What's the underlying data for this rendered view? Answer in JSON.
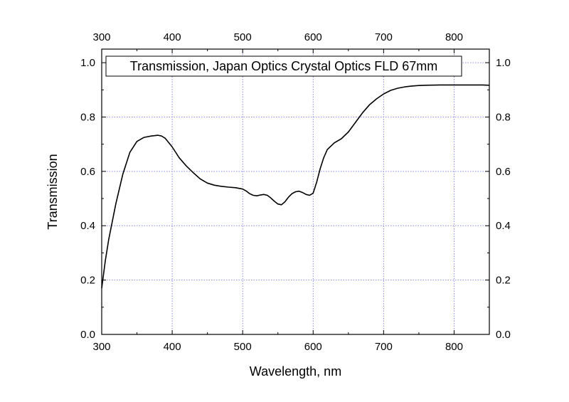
{
  "chart_data": {
    "type": "line",
    "title": "",
    "xlabel": "Wavelength, nm",
    "ylabel": "Transmission",
    "xlim": [
      300,
      850
    ],
    "ylim": [
      0,
      1.05
    ],
    "x_ticks": [
      300,
      400,
      500,
      600,
      700,
      800
    ],
    "y_ticks": [
      0.0,
      0.2,
      0.4,
      0.6,
      0.8,
      1.0
    ],
    "x_tick_labels": [
      "300",
      "400",
      "500",
      "600",
      "700",
      "800"
    ],
    "y_tick_labels": [
      "0.0",
      "0.2",
      "0.4",
      "0.6",
      "0.8",
      "1.0"
    ],
    "grid": true,
    "top_axis": "mirrors bottom",
    "right_axis": "mirrors left",
    "legend_position": "top",
    "colors": {
      "line": "#000000",
      "grid": "#8a8ae6",
      "axis": "#000000"
    },
    "series": [
      {
        "name": "Transmission, Japan Optics Crystal Optics FLD 67mm",
        "x": [
          300,
          305,
          310,
          320,
          330,
          340,
          350,
          360,
          370,
          380,
          385,
          390,
          400,
          410,
          420,
          430,
          440,
          450,
          460,
          470,
          480,
          490,
          500,
          505,
          510,
          515,
          520,
          525,
          530,
          535,
          540,
          545,
          550,
          555,
          560,
          565,
          570,
          575,
          580,
          585,
          590,
          595,
          600,
          605,
          610,
          615,
          620,
          630,
          640,
          650,
          660,
          670,
          680,
          690,
          700,
          710,
          720,
          730,
          740,
          750,
          760,
          780,
          800,
          820,
          840,
          850
        ],
        "y": [
          0.17,
          0.27,
          0.35,
          0.48,
          0.59,
          0.67,
          0.71,
          0.725,
          0.73,
          0.733,
          0.73,
          0.722,
          0.69,
          0.65,
          0.62,
          0.595,
          0.572,
          0.557,
          0.549,
          0.545,
          0.542,
          0.54,
          0.535,
          0.528,
          0.518,
          0.512,
          0.51,
          0.513,
          0.515,
          0.512,
          0.502,
          0.49,
          0.48,
          0.477,
          0.488,
          0.505,
          0.518,
          0.525,
          0.527,
          0.522,
          0.515,
          0.512,
          0.52,
          0.56,
          0.61,
          0.65,
          0.68,
          0.705,
          0.72,
          0.745,
          0.78,
          0.815,
          0.845,
          0.867,
          0.885,
          0.898,
          0.906,
          0.911,
          0.914,
          0.916,
          0.917,
          0.918,
          0.918,
          0.918,
          0.918,
          0.917
        ]
      }
    ]
  }
}
